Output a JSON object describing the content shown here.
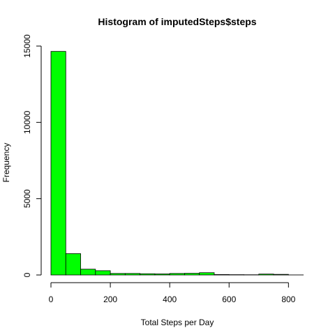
{
  "chart_data": {
    "type": "bar",
    "title": "Histogram of imputedSteps$steps",
    "xlabel": "Total Steps per Day",
    "ylabel": "Frequency",
    "bin_width": 50,
    "bins": [
      {
        "start": 0,
        "end": 50,
        "count": 14650
      },
      {
        "start": 50,
        "end": 100,
        "count": 1400
      },
      {
        "start": 100,
        "end": 150,
        "count": 380
      },
      {
        "start": 150,
        "end": 200,
        "count": 280
      },
      {
        "start": 200,
        "end": 250,
        "count": 100
      },
      {
        "start": 250,
        "end": 300,
        "count": 100
      },
      {
        "start": 300,
        "end": 350,
        "count": 80
      },
      {
        "start": 350,
        "end": 400,
        "count": 70
      },
      {
        "start": 400,
        "end": 450,
        "count": 100
      },
      {
        "start": 450,
        "end": 500,
        "count": 110
      },
      {
        "start": 500,
        "end": 550,
        "count": 150
      },
      {
        "start": 550,
        "end": 600,
        "count": 30
      },
      {
        "start": 600,
        "end": 650,
        "count": 20
      },
      {
        "start": 650,
        "end": 700,
        "count": 15
      },
      {
        "start": 700,
        "end": 750,
        "count": 60
      },
      {
        "start": 750,
        "end": 800,
        "count": 40
      },
      {
        "start": 800,
        "end": 850,
        "count": 5
      }
    ],
    "xlim": [
      0,
      850
    ],
    "ylim": [
      0,
      15000
    ],
    "x_ticks": [
      "0",
      "200",
      "400",
      "600",
      "800"
    ],
    "y_ticks": [
      "0",
      "5000",
      "10000",
      "15000"
    ],
    "grid": false,
    "bar_color": "#00ff00",
    "bar_border_color": "#000000"
  }
}
